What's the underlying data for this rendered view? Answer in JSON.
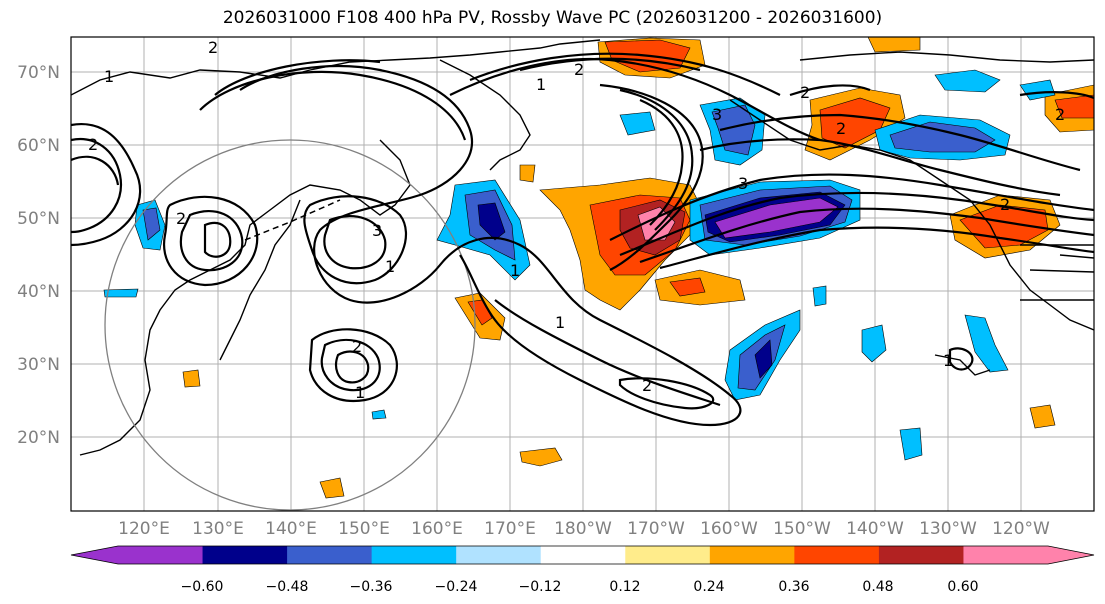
{
  "title": "2026031000 F108 400 hPa PV, Rossby Wave PC (2026031200 - 2026031600)",
  "latitude_labels": [
    "70°N",
    "60°N",
    "50°N",
    "40°N",
    "30°N",
    "20°N"
  ],
  "longitude_labels": [
    "120°E",
    "130°E",
    "140°E",
    "150°E",
    "160°E",
    "170°E",
    "180°W",
    "170°W",
    "160°W",
    "150°W",
    "140°W",
    "130°W",
    "120°W"
  ],
  "contour_labels": [
    "1",
    "2",
    "3"
  ],
  "colorbar": {
    "ticks": [
      "−0.60",
      "−0.48",
      "−0.36",
      "−0.24",
      "−0.12",
      "0.12",
      "0.24",
      "0.36",
      "0.48",
      "0.60"
    ],
    "colors": [
      "#9a32cd",
      "#00008b",
      "#3a5fcd",
      "#00bfff",
      "#b0e2ff",
      "#ffffff",
      "#ffec8b",
      "#ffa500",
      "#ff4500",
      "#b22222",
      "#ff82ab"
    ]
  }
}
